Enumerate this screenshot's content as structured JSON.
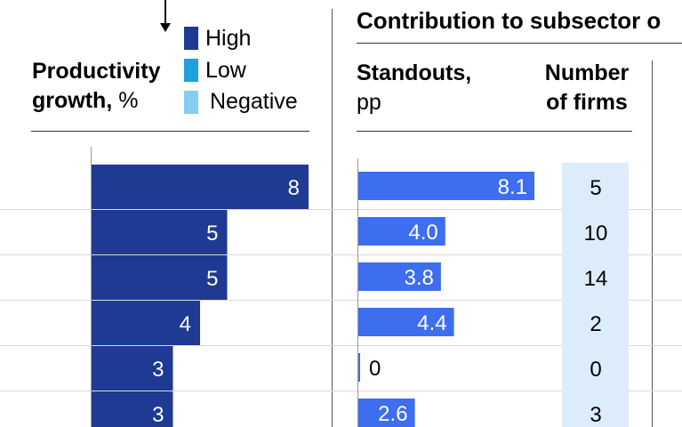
{
  "header": {
    "title": "Contribution to subsector o",
    "productivity_label_bold": "Productivity",
    "productivity_label_bold2": "growth,",
    "productivity_label_unit": " %",
    "standouts_label": "Standouts,",
    "standouts_unit": "pp",
    "firms_label_line1": "Number",
    "firms_label_line2": "of firms"
  },
  "legend": [
    {
      "label": "High",
      "color": "#1f3a93"
    },
    {
      "label": "Low",
      "color": "#1fa0e0"
    },
    {
      "label": "Negative",
      "color": "#86cdf5"
    }
  ],
  "chart_data": [
    {
      "type": "bar",
      "orientation": "horizontal",
      "series": [
        {
          "name": "High",
          "values": [
            8,
            5,
            5,
            4,
            3,
            3
          ]
        }
      ],
      "data_labels": [
        "8",
        "5",
        "5",
        "4",
        "3",
        "3"
      ],
      "xlim": [
        0,
        8
      ]
    },
    {
      "type": "bar",
      "orientation": "horizontal",
      "values": [
        8.1,
        4.0,
        3.8,
        4.4,
        0,
        2.6
      ],
      "data_labels": [
        "8.1",
        "4.0",
        "3.8",
        "4.4",
        "0",
        "2.6"
      ],
      "xlim": [
        0,
        8.1
      ]
    },
    {
      "type": "table",
      "values": [
        5,
        10,
        14,
        2,
        0,
        3
      ],
      "data_labels": [
        "5",
        "10",
        "14",
        "2",
        "0",
        "3"
      ]
    }
  ],
  "colors": {
    "productivity_bar": "#1f3a93",
    "standouts_bar": "#3d6ef0",
    "firms_bg": "#dcecfb"
  }
}
